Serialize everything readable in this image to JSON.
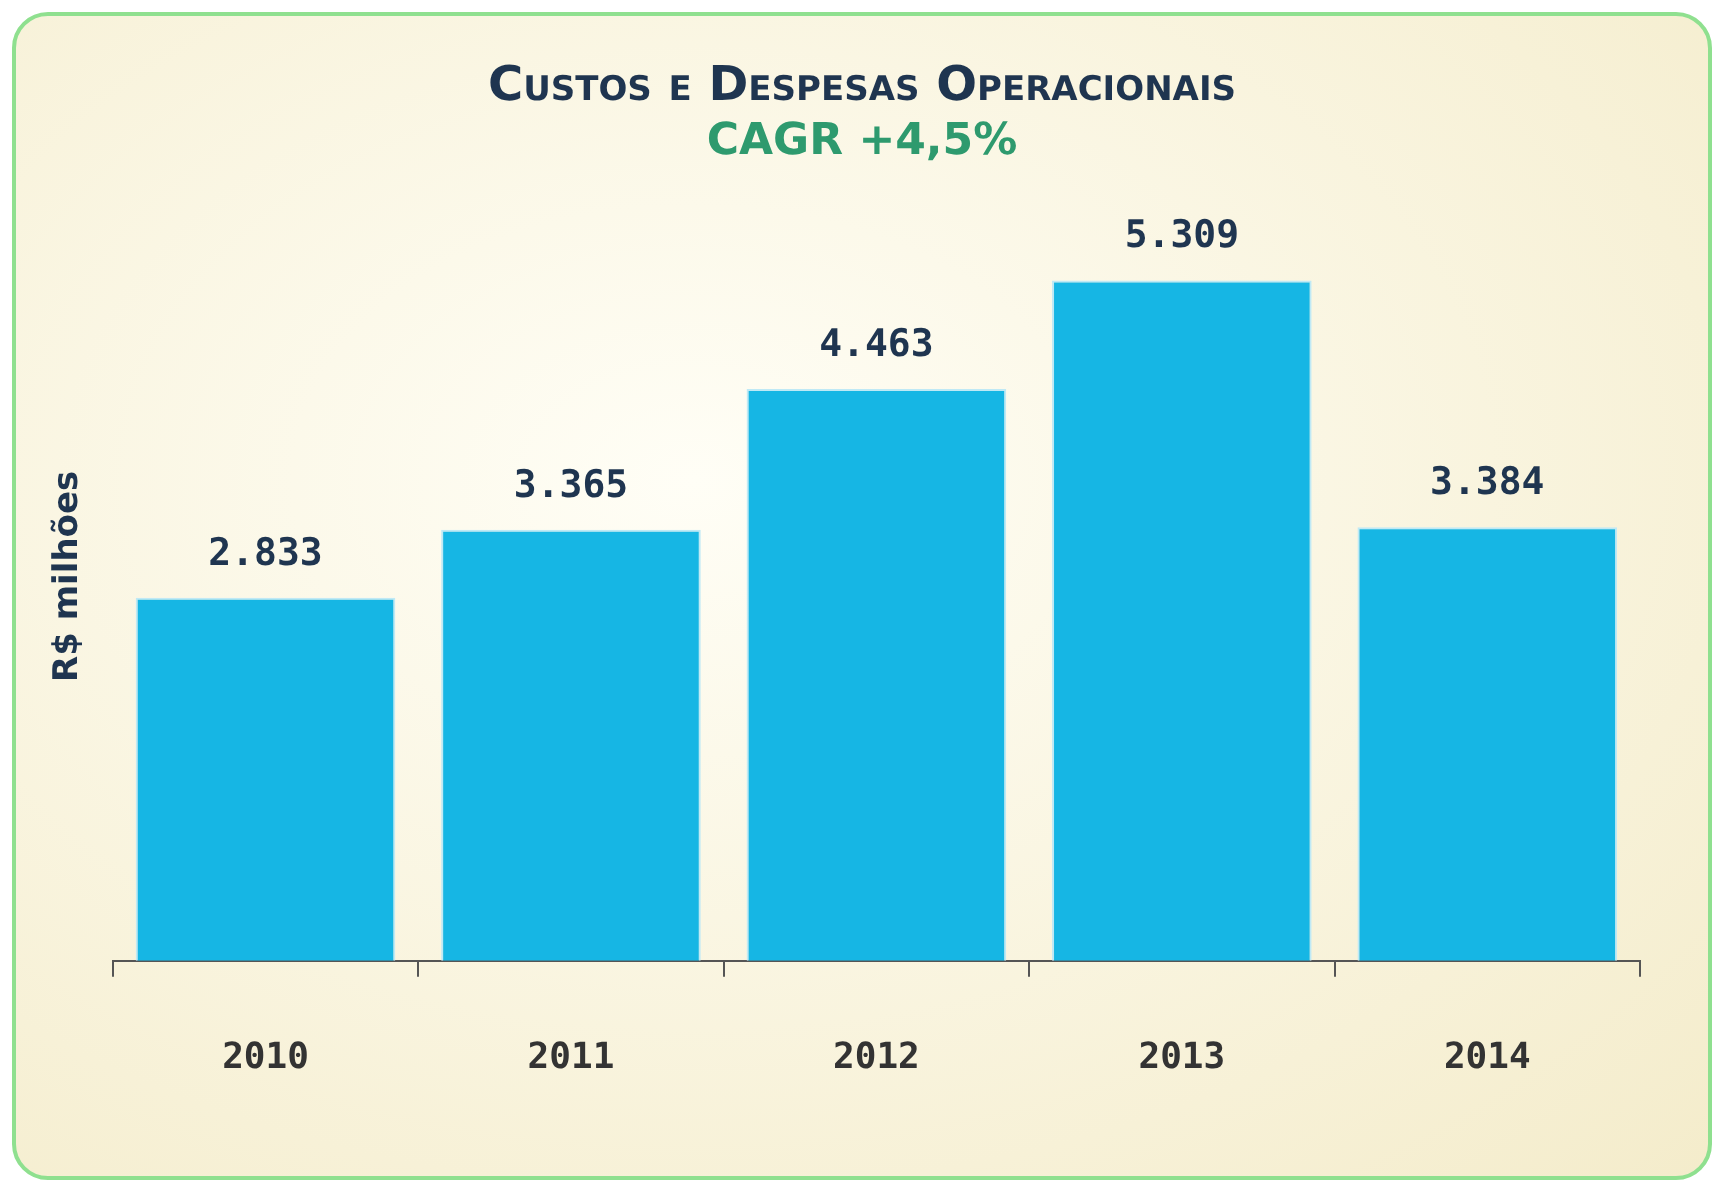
{
  "chart_data": {
    "type": "bar",
    "title": "Custos e Despesas Operacionais",
    "subtitle": "CAGR +4,5%",
    "ylabel": "R$ milhões",
    "categories": [
      "2010",
      "2011",
      "2012",
      "2013",
      "2014"
    ],
    "values": [
      2833,
      3365,
      4463,
      5309,
      3384
    ],
    "value_labels": [
      "2.833",
      "3.365",
      "4.463",
      "5.309",
      "3.384"
    ],
    "color": "#16b6e4",
    "grid": false,
    "legend": false
  }
}
